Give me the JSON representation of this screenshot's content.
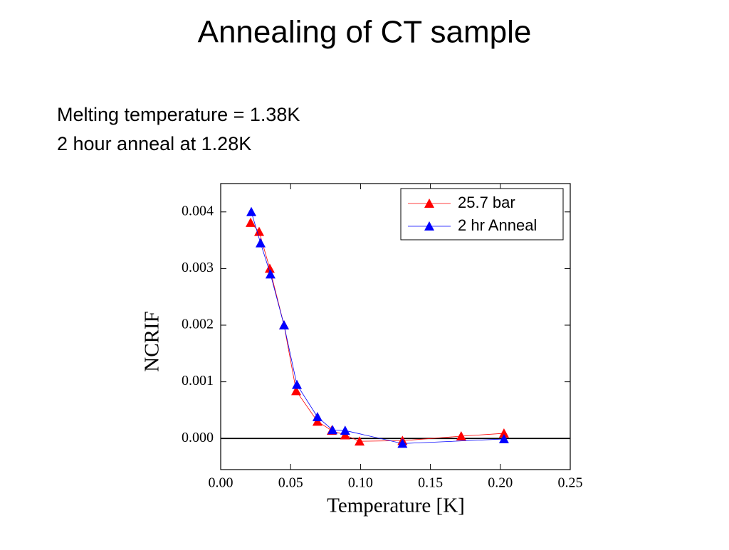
{
  "chart_data": {
    "type": "line",
    "title": "Annealing of CT sample",
    "annotations": [
      "Melting temperature = 1.38K",
      "2 hour anneal at 1.28K"
    ],
    "x_label": "Temperature [K]",
    "y_label": "NCRIF",
    "xlim": [
      0,
      0.25
    ],
    "ylim": [
      -0.00055,
      0.0045
    ],
    "xticks": [
      {
        "value": 0,
        "label": "0.00"
      },
      {
        "value": 0.05,
        "label": "0.05"
      },
      {
        "value": 0.1,
        "label": "0.10"
      },
      {
        "value": 0.15,
        "label": "0.15"
      },
      {
        "value": 0.2,
        "label": "0.20"
      },
      {
        "value": 0.25,
        "label": "0.25"
      }
    ],
    "yticks": [
      {
        "value": 0,
        "label": "0.000"
      },
      {
        "value": 0.001,
        "label": "0.001"
      },
      {
        "value": 0.002,
        "label": "0.002"
      },
      {
        "value": 0.003,
        "label": "0.003"
      },
      {
        "value": 0.004,
        "label": "0.004"
      }
    ],
    "legend": "upper right",
    "series": [
      {
        "name": "25.7 bar",
        "color": "#ff0000",
        "x": [
          0.0214,
          0.0275,
          0.0351,
          0.0453,
          0.054,
          0.0692,
          0.0794,
          0.089,
          0.0993,
          0.13,
          0.172,
          0.2026
        ],
        "values": [
          0.00381,
          0.00365,
          0.003,
          0.002,
          0.00084,
          0.0003,
          0.00014,
          6e-05,
          -5e-05,
          -4e-05,
          4e-05,
          9e-05
        ]
      },
      {
        "name": "2 hr Anneal",
        "color": "#0000ff",
        "x": [
          0.0219,
          0.0285,
          0.0356,
          0.0453,
          0.0545,
          0.0692,
          0.08,
          0.089,
          0.13,
          0.2026
        ],
        "values": [
          0.004,
          0.00345,
          0.0029,
          0.002,
          0.00095,
          0.00038,
          0.00015,
          0.00014,
          -9e-05,
          -1e-05
        ]
      }
    ]
  }
}
